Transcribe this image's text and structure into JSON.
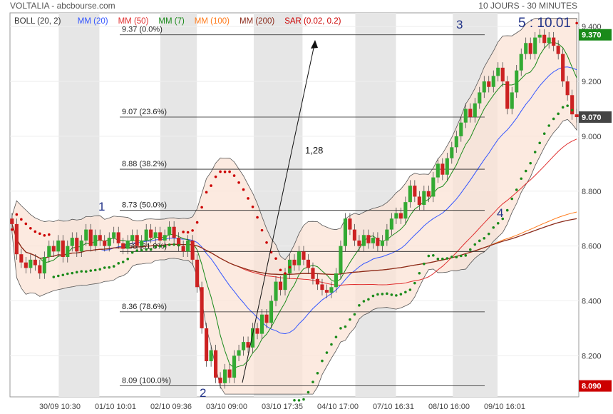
{
  "header": {
    "title": "VOLTALIA - abcbourse.com",
    "period": "10 JOURS - 30 MINUTES"
  },
  "legend": [
    {
      "label": "BOLL (20, 2)",
      "color": "#333333"
    },
    {
      "label": "MM (20)",
      "color": "#3355ff"
    },
    {
      "label": "MM (50)",
      "color": "#e03030"
    },
    {
      "label": "MM (7)",
      "color": "#1a8a1a"
    },
    {
      "label": "MM (100)",
      "color": "#ff7a1a"
    },
    {
      "label": "MM (200)",
      "color": "#8b2a1a"
    },
    {
      "label": "SAR (0.02, 0.2)",
      "color": "#cc0000"
    }
  ],
  "annotation_time": "5 : 10.01",
  "annotation_rate": "1,28",
  "wave_labels": [
    "1",
    "2",
    "3",
    "4"
  ],
  "price_badges": [
    {
      "label": "9.370",
      "value": 9.37,
      "color": "#1a8a1a"
    },
    {
      "label": "9.070",
      "value": 9.07,
      "color": "#444444"
    },
    {
      "label": "8.090",
      "value": 8.09,
      "color": "#cc0000"
    }
  ],
  "chart_data": {
    "type": "candlestick",
    "y_axis": {
      "ticks": [
        8.2,
        8.4,
        8.6,
        8.8,
        9.0,
        9.2,
        9.4
      ],
      "tick_labels": [
        "8.200",
        "8.400",
        "8.600",
        "8.800",
        "9.000",
        "9.200",
        "9.400"
      ],
      "range": [
        8.05,
        9.45
      ]
    },
    "x_axis": {
      "tick_labels": [
        "30/09 10:30",
        "01/10 10:01",
        "02/10 09:36",
        "03/10 09:00",
        "03/10 17:35",
        "04/10 17:00",
        "07/10 16:31",
        "08/10 16:00",
        "09/10 16:01"
      ],
      "total_bars": 140
    },
    "fibonacci": [
      {
        "label": "9.37  (0.0%)",
        "value": 9.37
      },
      {
        "label": "9.07  (23.6%)",
        "value": 9.07
      },
      {
        "label": "8.88  (38.2%)",
        "value": 8.88
      },
      {
        "label": "8.73  (50.0%)",
        "value": 8.73
      },
      {
        "label": "8.58  (61.8%)",
        "value": 8.58
      },
      {
        "label": "8.36  (78.6%)",
        "value": 8.36
      },
      {
        "label": "8.09  (100.0%)",
        "value": 8.09
      }
    ],
    "closes": [
      8.68,
      8.57,
      8.54,
      8.52,
      8.55,
      8.53,
      8.5,
      8.56,
      8.6,
      8.58,
      8.62,
      8.56,
      8.6,
      8.63,
      8.58,
      8.62,
      8.66,
      8.6,
      8.64,
      8.62,
      8.6,
      8.63,
      8.65,
      8.61,
      8.59,
      8.62,
      8.64,
      8.6,
      8.62,
      8.66,
      8.63,
      8.65,
      8.62,
      8.64,
      8.67,
      8.63,
      8.6,
      8.58,
      8.62,
      8.55,
      8.45,
      8.3,
      8.18,
      8.22,
      8.12,
      8.1,
      8.15,
      8.12,
      8.2,
      8.22,
      8.25,
      8.23,
      8.3,
      8.28,
      8.35,
      8.32,
      8.4,
      8.47,
      8.44,
      8.5,
      8.55,
      8.53,
      8.58,
      8.55,
      8.52,
      8.48,
      8.46,
      8.44,
      8.43,
      8.45,
      8.5,
      8.6,
      8.7,
      8.66,
      8.62,
      8.6,
      8.64,
      8.61,
      8.63,
      8.6,
      8.62,
      8.66,
      8.7,
      8.72,
      8.7,
      8.76,
      8.82,
      8.78,
      8.75,
      8.8,
      8.78,
      8.85,
      8.9,
      8.86,
      8.92,
      8.96,
      9.0,
      9.05,
      9.1,
      9.07,
      9.12,
      9.16,
      9.2,
      9.18,
      9.22,
      9.25,
      9.2,
      9.1,
      9.16,
      9.24,
      9.3,
      9.34,
      9.3,
      9.36,
      9.37,
      9.34,
      9.36,
      9.33,
      9.3,
      9.2,
      9.15,
      9.08,
      9.07
    ],
    "highs": {
      "9.42": 118
    },
    "lows_note": "",
    "sessions_shaded": [
      [
        12,
        22
      ],
      [
        37,
        46
      ],
      [
        60,
        72
      ],
      [
        85,
        95
      ],
      [
        109,
        120
      ]
    ]
  }
}
